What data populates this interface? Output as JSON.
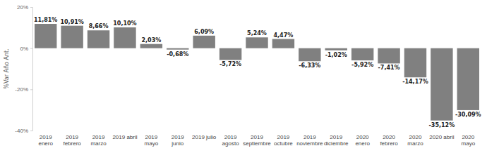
{
  "chart_data": {
    "type": "bar",
    "y_label": "%Var Año Ant.",
    "categories": [
      "2019 enero",
      "2019 febrero",
      "2019 marzo",
      "2019 abril",
      "2019 mayo",
      "2019 junio",
      "2019 julio",
      "2019 agosto",
      "2019 septiembre",
      "2019 octubre",
      "2019 noviembre",
      "2019 diciembre",
      "2020 enero",
      "2020 febrero",
      "2020 marzo",
      "2020 abril",
      "2020 mayo"
    ],
    "values": [
      11.81,
      10.91,
      8.66,
      10.1,
      2.03,
      -0.68,
      6.09,
      -5.72,
      5.24,
      4.47,
      -6.33,
      -1.02,
      -5.92,
      -7.41,
      -14.17,
      -35.12,
      -30.09
    ],
    "value_labels": [
      "11,81%",
      "10,91%",
      "8,66%",
      "10,10%",
      "2,03%",
      "-0,68%",
      "6,09%",
      "-5,72%",
      "5,24%",
      "4,47%",
      "-6,33%",
      "-1,02%",
      "-5,92%",
      "-7,41%",
      "-14,17%",
      "-35,12%",
      "-30,09%"
    ],
    "color": "#808080",
    "ylim": [
      -40,
      20
    ],
    "yticks": [
      {
        "value": -40,
        "label": "-40%"
      },
      {
        "value": -20,
        "label": "-20%"
      },
      {
        "value": 0,
        "label": "0%"
      },
      {
        "value": 20,
        "label": "20%"
      }
    ],
    "grid": false,
    "data_labels": true
  }
}
